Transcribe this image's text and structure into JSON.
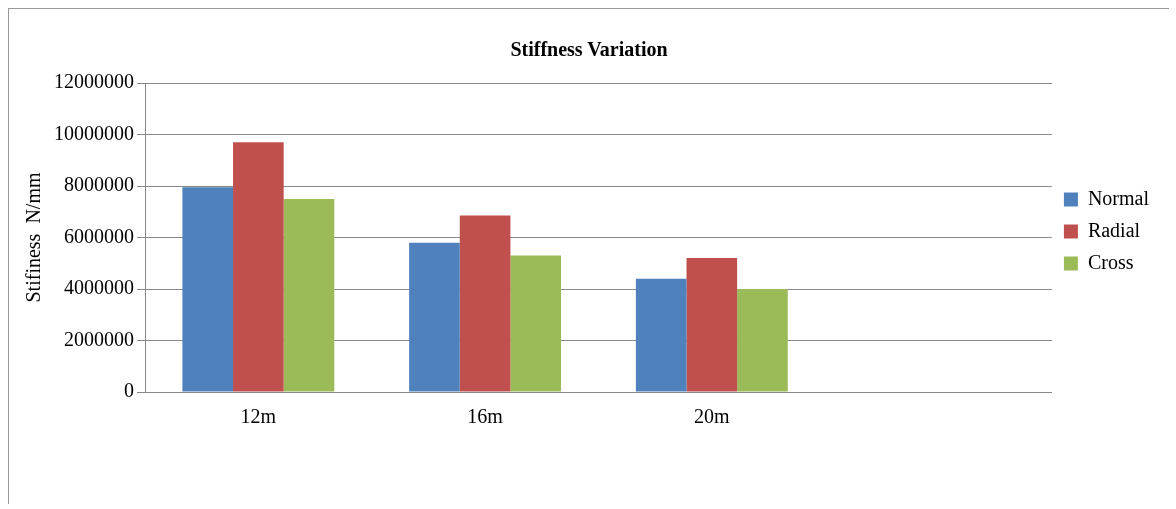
{
  "chart_data": {
    "type": "bar",
    "title": "Stiffness Variation",
    "ylabel": "Stifiness  N/mm",
    "categories": [
      "12m",
      "16m",
      "20m",
      null
    ],
    "series": [
      {
        "name": "Normal",
        "color": "#4f81bd",
        "values": [
          7950000,
          5800000,
          4400000,
          null
        ]
      },
      {
        "name": "Radial",
        "color": "#c0504d",
        "values": [
          9700000,
          6850000,
          5200000,
          null
        ]
      },
      {
        "name": "Cross",
        "color": "#9bbb59",
        "values": [
          7500000,
          5300000,
          4000000,
          null
        ]
      }
    ],
    "ylim": [
      0,
      12000000
    ],
    "yticks": [
      0,
      2000000,
      4000000,
      6000000,
      8000000,
      10000000,
      12000000
    ],
    "grid": "y",
    "legend": "right"
  }
}
